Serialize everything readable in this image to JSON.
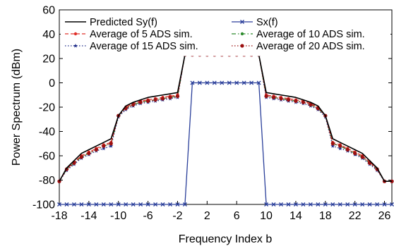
{
  "chart_data": {
    "type": "line",
    "xlabel": "Frequency Index b",
    "ylabel": "Power Spectrum  (dBm)",
    "xlim": [
      -18,
      27
    ],
    "ylim": [
      -100,
      60
    ],
    "xticks": [
      -18,
      -14,
      -10,
      -6,
      -2,
      2,
      6,
      10,
      14,
      18,
      22,
      26
    ],
    "yticks": [
      60,
      40,
      20,
      0,
      -20,
      -40,
      -60,
      -80,
      -100
    ],
    "grid": false,
    "legend_position": "top",
    "x": [
      -18,
      -17,
      -16,
      -15,
      -14,
      -13,
      -12,
      -11,
      -10,
      -9,
      -8,
      -7,
      -6,
      -5,
      -4,
      -3,
      -2,
      -1,
      0,
      1,
      2,
      3,
      4,
      5,
      6,
      7,
      8,
      9,
      10,
      11,
      12,
      13,
      14,
      15,
      16,
      17,
      18,
      19,
      20,
      21,
      22,
      23,
      24,
      25,
      26,
      27
    ],
    "series": [
      {
        "name": "Predicted Sy(f)",
        "color": "#000000",
        "marker": "none",
        "dash": "solid",
        "values": [
          -81,
          -70,
          -64,
          -58,
          -55,
          -52,
          -49,
          -46,
          -27,
          -19,
          -16,
          -14,
          -12,
          -11,
          -10,
          -9,
          -8,
          23,
          23,
          23,
          23,
          23,
          23,
          23,
          23,
          23,
          23,
          23,
          -8,
          -9,
          -10,
          -11,
          -12,
          -14,
          -16,
          -19,
          -27,
          -46,
          -49,
          -52,
          -55,
          -58,
          -64,
          -70,
          -81,
          -81
        ]
      },
      {
        "name": "Sx(f)",
        "color": "#2a3f9a",
        "marker": "x",
        "dash": "solid",
        "values": [
          -100,
          -100,
          -100,
          -100,
          -100,
          -100,
          -100,
          -100,
          -100,
          -100,
          -100,
          -100,
          -100,
          -100,
          -100,
          -100,
          -100,
          -100,
          0,
          0,
          0,
          0,
          0,
          0,
          0,
          0,
          0,
          0,
          -100,
          -100,
          -100,
          -100,
          -100,
          -100,
          -100,
          -100,
          -100,
          -100,
          -100,
          -100,
          -100,
          -100,
          -100,
          -100,
          -100,
          -100
        ]
      },
      {
        "name": "Average of 5 ADS sim.",
        "color": "#e0302a",
        "marker": "dot",
        "dash": "dash",
        "values": [
          -81,
          -71,
          -65,
          -60,
          -57,
          -54,
          -51,
          -49,
          -27,
          -20,
          -17,
          -15,
          -14,
          -13,
          -12,
          -11,
          -10,
          23,
          23,
          23,
          23,
          23,
          23,
          23,
          23,
          23,
          23,
          23,
          -10,
          -11,
          -12,
          -13,
          -14,
          -15,
          -17,
          -20,
          -27,
          -49,
          -51,
          -54,
          -57,
          -60,
          -65,
          -71,
          -81,
          -81
        ]
      },
      {
        "name": "Average of 10 ADS sim.",
        "color": "#2e8b2e",
        "marker": "dot",
        "dash": "dashdot",
        "values": [
          -81,
          -71,
          -66,
          -61,
          -58,
          -55,
          -52,
          -50,
          -27,
          -21,
          -18,
          -16,
          -15,
          -14,
          -13,
          -12,
          -11,
          23,
          23,
          23,
          23,
          23,
          23,
          23,
          23,
          23,
          23,
          23,
          -11,
          -12,
          -13,
          -14,
          -15,
          -16,
          -18,
          -21,
          -27,
          -50,
          -52,
          -55,
          -58,
          -61,
          -66,
          -71,
          -81,
          -81
        ]
      },
      {
        "name": "Average of 15 ADS sim.",
        "color": "#1f2d8a",
        "marker": "star",
        "dash": "dot",
        "values": [
          -81,
          -72,
          -67,
          -62,
          -59,
          -56,
          -54,
          -52,
          -28,
          -22,
          -19,
          -17,
          -16,
          -15,
          -14,
          -13,
          -12,
          23,
          23,
          23,
          23,
          23,
          23,
          23,
          23,
          23,
          23,
          23,
          -12,
          -13,
          -14,
          -15,
          -16,
          -17,
          -19,
          -22,
          -28,
          -52,
          -54,
          -56,
          -59,
          -62,
          -67,
          -72,
          -81,
          -81
        ]
      },
      {
        "name": "Average of 20 ADS sim.",
        "color": "#9b1010",
        "marker": "bigdot",
        "dash": "dot",
        "values": [
          -81,
          -71,
          -66,
          -61,
          -58,
          -55,
          -52,
          -50,
          -27,
          -21,
          -18,
          -16,
          -15,
          -14,
          -13,
          -12,
          -11,
          23,
          23,
          23,
          23,
          23,
          23,
          23,
          23,
          23,
          23,
          23,
          -11,
          -12,
          -13,
          -14,
          -15,
          -16,
          -18,
          -21,
          -27,
          -50,
          -52,
          -55,
          -58,
          -61,
          -66,
          -71,
          -81,
          -81
        ]
      }
    ]
  }
}
